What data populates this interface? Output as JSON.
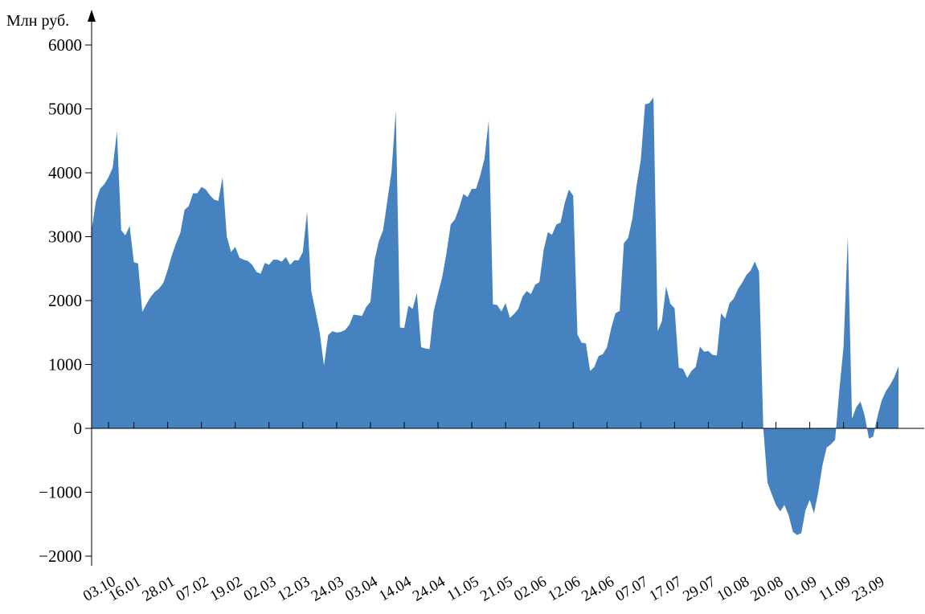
{
  "chart_data": {
    "type": "area",
    "title": "",
    "xlabel": "",
    "ylabel": "Млн руб.",
    "ylim": [
      -2000,
      6000
    ],
    "grid": false,
    "legend": "none",
    "colors": {
      "area": "#4682c0",
      "axis": "#000000"
    },
    "y_ticks": [
      "−2000",
      "−1000",
      "0",
      "1000",
      "2000",
      "3000",
      "4000",
      "5000",
      "6000"
    ],
    "x_tick_labels": [
      "03.10",
      "16.01",
      "28.01",
      "07.02",
      "19.02",
      "02.03",
      "12.03",
      "24.03",
      "03.04",
      "14.04",
      "24.04",
      "11.05",
      "21.05",
      "02.06",
      "12.06",
      "24.06",
      "07.07",
      "17.07",
      "29.07",
      "10.08",
      "20.08",
      "01.09",
      "11.09",
      "23.09"
    ],
    "x_tick_index": [
      4,
      10,
      18,
      26,
      34,
      42,
      50,
      58,
      66,
      74,
      82,
      90,
      98,
      106,
      114,
      122,
      130,
      138,
      146,
      154,
      162,
      170,
      178,
      186
    ],
    "values": [
      3100,
      3550,
      3750,
      3820,
      3930,
      4080,
      4650,
      3100,
      3020,
      3170,
      2600,
      2580,
      1820,
      1950,
      2060,
      2140,
      2190,
      2280,
      2480,
      2710,
      2900,
      3060,
      3420,
      3480,
      3680,
      3680,
      3780,
      3740,
      3650,
      3580,
      3560,
      3930,
      3000,
      2760,
      2840,
      2670,
      2640,
      2620,
      2560,
      2450,
      2420,
      2590,
      2560,
      2640,
      2640,
      2610,
      2680,
      2560,
      2630,
      2630,
      2760,
      3390,
      2150,
      1830,
      1500,
      980,
      1460,
      1520,
      1500,
      1510,
      1540,
      1620,
      1780,
      1770,
      1760,
      1900,
      1980,
      2640,
      2930,
      3100,
      3560,
      4020,
      4970,
      1580,
      1570,
      1920,
      1870,
      2120,
      1270,
      1250,
      1240,
      1840,
      2110,
      2370,
      2740,
      3190,
      3270,
      3450,
      3670,
      3620,
      3750,
      3750,
      3960,
      4220,
      4820,
      1940,
      1930,
      1830,
      1960,
      1730,
      1790,
      1870,
      2060,
      2150,
      2100,
      2250,
      2290,
      2790,
      3070,
      3030,
      3190,
      3220,
      3530,
      3740,
      3640,
      1470,
      1340,
      1330,
      900,
      960,
      1130,
      1160,
      1270,
      1570,
      1800,
      1840,
      2900,
      2980,
      3280,
      3800,
      4200,
      5070,
      5090,
      5180,
      1520,
      1680,
      2220,
      1950,
      1880,
      950,
      930,
      790,
      900,
      960,
      1280,
      1200,
      1210,
      1150,
      1140,
      1800,
      1720,
      1960,
      2030,
      2180,
      2280,
      2400,
      2470,
      2610,
      2450,
      0,
      -850,
      -1030,
      -1200,
      -1300,
      -1200,
      -1360,
      -1620,
      -1670,
      -1640,
      -1280,
      -1120,
      -1330,
      -1000,
      -580,
      -300,
      -250,
      -180,
      600,
      1280,
      3000,
      150,
      330,
      420,
      200,
      -160,
      -130,
      180,
      430,
      580,
      680,
      800,
      970
    ]
  }
}
